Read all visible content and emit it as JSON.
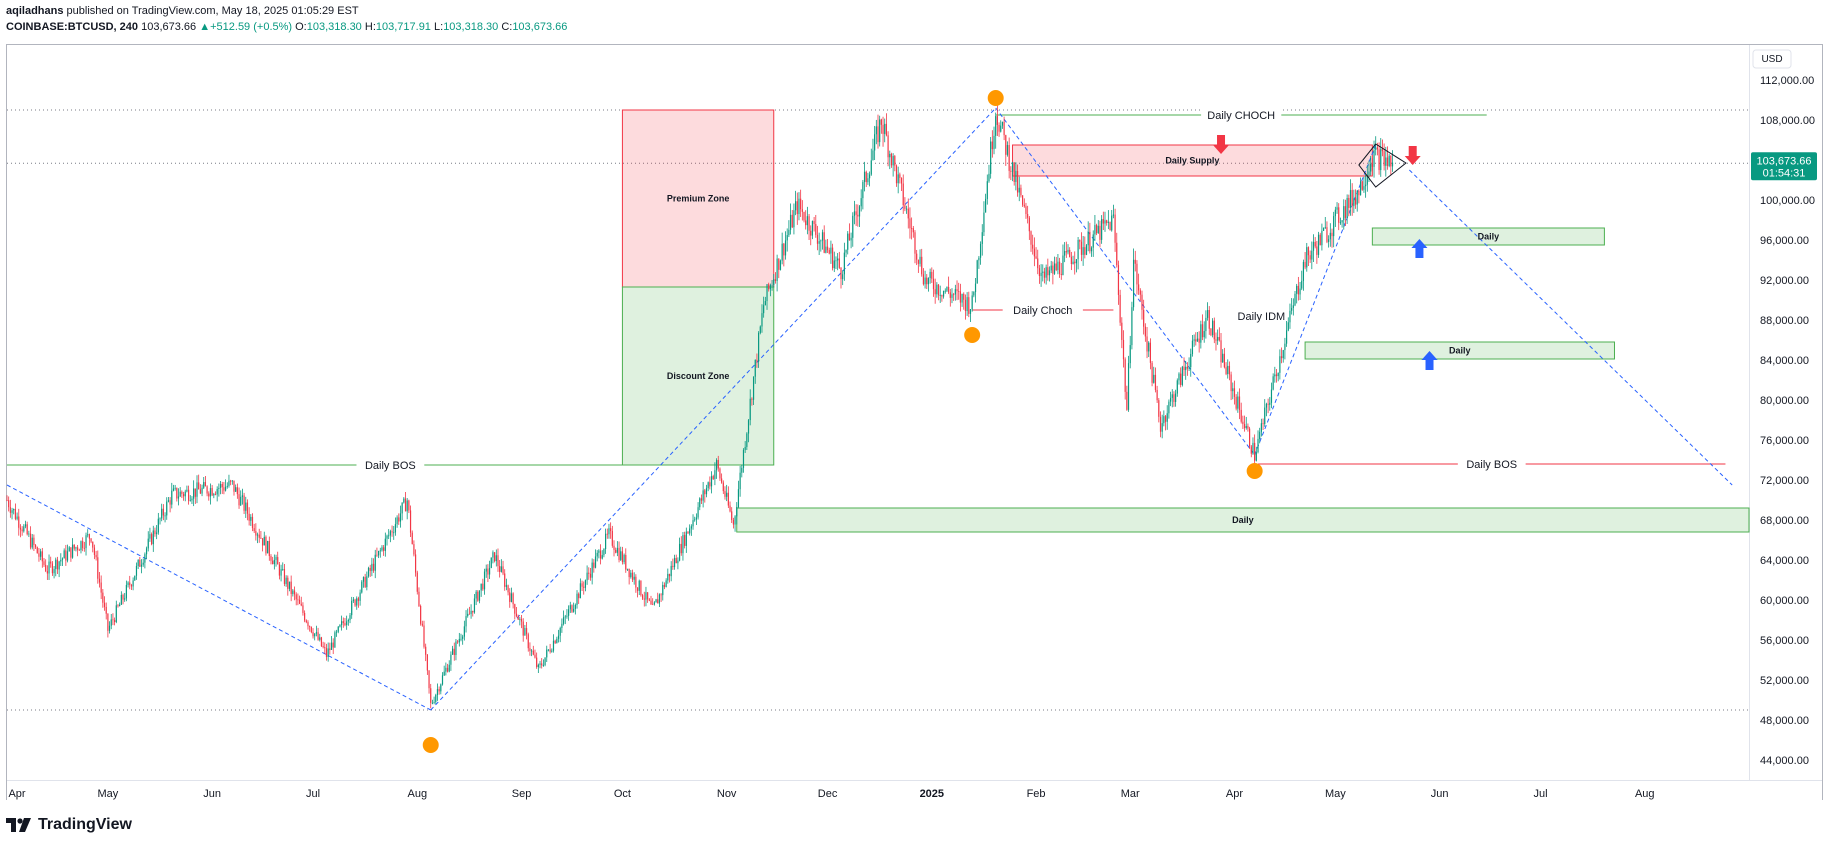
{
  "header": {
    "author": "aqiladhans",
    "published_text": "published on TradingView.com, May 18, 2025 01:05:29 EST",
    "symbol": "COINBASE:BTCUSD, 240",
    "last": "103,673.66",
    "change": "+512.59 (+0.5%)",
    "o_label": "O:",
    "o": "103,318.30",
    "h_label": "H:",
    "h": "103,717.91",
    "l_label": "L:",
    "l": "103,318.30",
    "c_label": "C:",
    "c": "103,673.66"
  },
  "footer": {
    "brand": "TradingView"
  },
  "colors": {
    "up": "#089981",
    "down": "#f23645",
    "supply": "#f23645",
    "demand": "#4caf50",
    "pivot": "#ff9800",
    "trend": "#2962ff",
    "price_tag": "#089981"
  },
  "chart_data": {
    "type": "candlestick",
    "symbol": "COINBASE:BTCUSD",
    "timeframe": "240",
    "currency": "USD",
    "y_ticks": [
      44000,
      48000,
      52000,
      56000,
      60000,
      64000,
      68000,
      72000,
      76000,
      80000,
      84000,
      88000,
      92000,
      96000,
      100000,
      104000,
      108000,
      112000
    ],
    "ylim": [
      42000,
      115500
    ],
    "x_ticks": [
      "Apr",
      "May",
      "Jun",
      "Jul",
      "Aug",
      "Sep",
      "Oct",
      "Nov",
      "Dec",
      "2025",
      "Feb",
      "Mar",
      "Apr",
      "May",
      "Jun",
      "Jul",
      "Aug"
    ],
    "x_tick_dates": [
      "2024-04-01",
      "2024-05-01",
      "2024-06-01",
      "2024-07-01",
      "2024-08-01",
      "2024-09-01",
      "2024-10-01",
      "2024-11-01",
      "2024-12-01",
      "2025-01-01",
      "2025-02-01",
      "2025-03-01",
      "2025-04-01",
      "2025-05-01",
      "2025-06-01",
      "2025-07-01",
      "2025-08-01"
    ],
    "xlim": [
      "2024-04-01",
      "2025-09-01"
    ],
    "current_price": 103673.66,
    "current_price_label": "103,673.66",
    "countdown": "01:54:31",
    "price_path": [
      [
        "2024-04-01",
        70000
      ],
      [
        "2024-04-13",
        63000
      ],
      [
        "2024-04-26",
        66500
      ],
      [
        "2024-05-01",
        57000
      ],
      [
        "2024-05-20",
        70500
      ],
      [
        "2024-06-07",
        71500
      ],
      [
        "2024-07-05",
        54500
      ],
      [
        "2024-07-29",
        70000
      ],
      [
        "2024-08-05",
        49500
      ],
      [
        "2024-08-24",
        64500
      ],
      [
        "2024-09-06",
        53000
      ],
      [
        "2024-09-27",
        66500
      ],
      [
        "2024-10-10",
        58900
      ],
      [
        "2024-10-29",
        73500
      ],
      [
        "2024-11-03",
        67500
      ],
      [
        "2024-11-12",
        89500
      ],
      [
        "2024-11-22",
        99500
      ],
      [
        "2024-12-05",
        93000
      ],
      [
        "2024-12-17",
        108000
      ],
      [
        "2024-12-30",
        92000
      ],
      [
        "2025-01-13",
        89500
      ],
      [
        "2025-01-20",
        109000
      ],
      [
        "2025-02-03",
        92000
      ],
      [
        "2025-02-24",
        98000
      ],
      [
        "2025-02-28",
        79000
      ],
      [
        "2025-03-02",
        94000
      ],
      [
        "2025-03-10",
        77500
      ],
      [
        "2025-03-24",
        88500
      ],
      [
        "2025-04-07",
        74500
      ],
      [
        "2025-04-22",
        94000
      ],
      [
        "2025-05-08",
        101000
      ],
      [
        "2025-05-12",
        104500
      ],
      [
        "2025-05-18",
        103674
      ]
    ],
    "pivots": [
      {
        "date": "2024-08-05",
        "price": 45500
      },
      {
        "date": "2025-01-20",
        "price": 110200
      },
      {
        "date": "2025-01-13",
        "price": 86500
      },
      {
        "date": "2025-04-07",
        "price": 72900
      }
    ],
    "trend_lines": [
      {
        "from": [
          "2024-04-01",
          71500
        ],
        "to": [
          "2024-08-05",
          49000
        ]
      },
      {
        "from": [
          "2024-08-05",
          49000
        ],
        "to": [
          "2025-01-20",
          109200
        ]
      },
      {
        "from": [
          "2025-01-20",
          109200
        ],
        "to": [
          "2025-04-07",
          74500
        ]
      },
      {
        "from": [
          "2025-04-07",
          74500
        ],
        "to": [
          "2025-05-13",
          105500
        ]
      },
      {
        "from": [
          "2025-05-23",
          103000
        ],
        "to": [
          "2025-08-27",
          71500
        ]
      }
    ],
    "zones": [
      {
        "label": "Premium Zone",
        "kind": "supply",
        "from": "2024-10-01",
        "to": "2024-11-15",
        "top": 109000,
        "bottom": 91300
      },
      {
        "label": "Discount Zone",
        "kind": "demand",
        "from": "2024-10-01",
        "to": "2024-11-15",
        "top": 91300,
        "bottom": 73500
      },
      {
        "label": "Daily Supply",
        "kind": "supply",
        "from": "2025-01-25",
        "to": "2025-05-12",
        "top": 105500,
        "bottom": 102400
      },
      {
        "label": "Daily",
        "kind": "demand",
        "from": "2025-05-12",
        "to": "2025-07-20",
        "top": 97200,
        "bottom": 95500
      },
      {
        "label": "Daily",
        "kind": "demand",
        "from": "2025-04-22",
        "to": "2025-07-23",
        "top": 85800,
        "bottom": 84100
      },
      {
        "label": "Daily",
        "kind": "demand",
        "from": "2024-11-04",
        "to": "2025-09-01",
        "top": 69200,
        "bottom": 66800
      }
    ],
    "levels": [
      {
        "label": "Daily BOS",
        "kind": "demand",
        "from": "2024-04-01",
        "to": "2024-11-15",
        "price": 73500
      },
      {
        "label": "Daily CHOCH",
        "kind": "demand",
        "from": "2025-01-20",
        "to": "2025-06-15",
        "price": 108500
      },
      {
        "label": "Daily Choch",
        "kind": "supply",
        "from": "2025-01-13",
        "to": "2025-02-24",
        "price": 89000
      },
      {
        "label": "Daily BOS",
        "kind": "supply",
        "from": "2025-04-08",
        "to": "2025-08-25",
        "price": 73600
      }
    ],
    "free_labels": [
      {
        "label": "Daily IDM",
        "date": "2025-04-09",
        "price": 88000
      }
    ],
    "horizontal_dotted": [
      109000,
      103674,
      49000
    ],
    "arrows": [
      {
        "dir": "down",
        "kind": "supply",
        "date": "2025-03-28",
        "price": 105300
      },
      {
        "dir": "down",
        "kind": "supply",
        "date": "2025-05-24",
        "price": 104200
      },
      {
        "dir": "up",
        "kind": "demand",
        "date": "2025-05-26",
        "price": 95400
      },
      {
        "dir": "up",
        "kind": "demand",
        "date": "2025-05-29",
        "price": 84200
      }
    ],
    "pattern": {
      "type": "diamond",
      "points": [
        [
          "2025-05-08",
          103500
        ],
        [
          "2025-05-13",
          105600
        ],
        [
          "2025-05-22",
          103700
        ],
        [
          "2025-05-13",
          101300
        ]
      ]
    }
  }
}
